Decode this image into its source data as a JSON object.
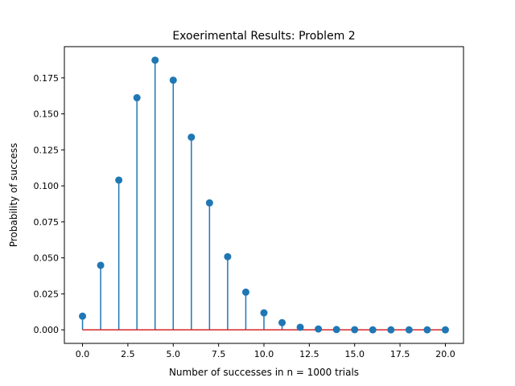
{
  "chart_data": {
    "type": "stem",
    "title": "Exoerimental Results: Problem 2",
    "xlabel": "Number of successes in n = 1000 trials",
    "ylabel": "Probability of success",
    "x": [
      0,
      1,
      2,
      3,
      4,
      5,
      6,
      7,
      8,
      9,
      10,
      11,
      12,
      13,
      14,
      15,
      16,
      17,
      18,
      19,
      20
    ],
    "y": [
      0.0095,
      0.0448,
      0.104,
      0.1612,
      0.1873,
      0.1734,
      0.1338,
      0.0882,
      0.0508,
      0.0262,
      0.0118,
      0.005,
      0.0018,
      0.0006,
      0.0002,
      0.0001,
      0.0,
      0.0,
      0.0,
      0.0,
      0.0
    ],
    "xlim": [
      -1.0,
      21.0
    ],
    "ylim": [
      -0.0094,
      0.1967
    ],
    "xticks": [
      0.0,
      2.5,
      5.0,
      7.5,
      10.0,
      12.5,
      15.0,
      17.5,
      20.0
    ],
    "xtick_labels": [
      "0.0",
      "2.5",
      "5.0",
      "7.5",
      "10.0",
      "12.5",
      "15.0",
      "17.5",
      "20.0"
    ],
    "yticks": [
      0.0,
      0.025,
      0.05,
      0.075,
      0.1,
      0.125,
      0.15,
      0.175
    ],
    "ytick_labels": [
      "0.000",
      "0.025",
      "0.050",
      "0.075",
      "0.100",
      "0.125",
      "0.150",
      "0.175"
    ],
    "grid": false,
    "legend": "none",
    "colors": {
      "stem": "#1f77b4",
      "marker": "#1f77b4",
      "baseline": "#d62728",
      "axes": "#000000"
    }
  }
}
